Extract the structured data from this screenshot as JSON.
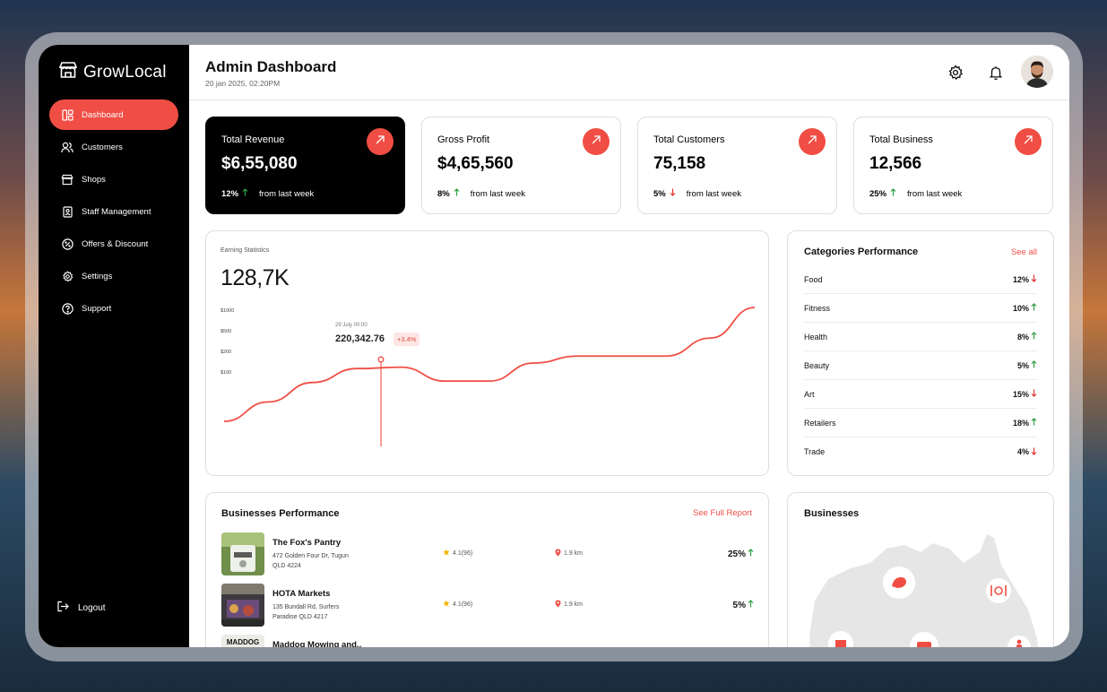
{
  "app": {
    "name": "GrowLocal"
  },
  "sidebar": {
    "items": [
      {
        "label": "Dashboard",
        "icon": "dashboard-icon",
        "active": true
      },
      {
        "label": "Customers",
        "icon": "users-icon"
      },
      {
        "label": "Shops",
        "icon": "shop-icon"
      },
      {
        "label": "Staff Management",
        "icon": "id-badge-icon"
      },
      {
        "label": "Offers & Discount",
        "icon": "discount-icon"
      },
      {
        "label": "Settings",
        "icon": "gear-icon"
      },
      {
        "label": "Support",
        "icon": "help-icon"
      }
    ],
    "logout": "Logout"
  },
  "header": {
    "title": "Admin Dashboard",
    "datetime": "20 jan 2025, 02:20PM"
  },
  "stats": [
    {
      "label": "Total Revenue",
      "value": "$6,55,080",
      "change": "12%",
      "direction": "up",
      "note": "from last week"
    },
    {
      "label": "Gross Profit",
      "value": "$4,65,560",
      "change": "8%",
      "direction": "up",
      "note": "from last week"
    },
    {
      "label": "Total Customers",
      "value": "75,158",
      "change": "5%",
      "direction": "down",
      "note": "from last week"
    },
    {
      "label": "Total Business",
      "value": "12,566",
      "change": "25%",
      "direction": "up",
      "note": "from last week"
    }
  ],
  "earning": {
    "label": "Earning Statistics",
    "value": "128,7K",
    "yticks": [
      "$1000",
      "$500",
      "$200",
      "$100"
    ],
    "tooltip": {
      "date": "29 July 00:00",
      "value": "220,342.76",
      "change": "+3.4%"
    }
  },
  "chart_data": {
    "type": "area",
    "title": "Earning Statistics",
    "yticks": [
      "$1000",
      "$500",
      "$200",
      "$100"
    ],
    "series": [
      {
        "values": [
          0.18,
          0.32,
          0.46,
          0.56,
          0.57,
          0.47,
          0.47,
          0.6,
          0.65,
          0.65,
          0.65,
          0.78,
          1.0
        ]
      }
    ],
    "grid": false
  },
  "categories": {
    "title": "Categories Performance",
    "see_all": "See all",
    "items": [
      {
        "name": "Food",
        "pct": "12%",
        "direction": "down"
      },
      {
        "name": "Fitness",
        "pct": "10%",
        "direction": "up"
      },
      {
        "name": "Health",
        "pct": "8%",
        "direction": "up"
      },
      {
        "name": "Beauty",
        "pct": "5%",
        "direction": "up"
      },
      {
        "name": "Art",
        "pct": "15%",
        "direction": "down"
      },
      {
        "name": "Retailers",
        "pct": "18%",
        "direction": "up"
      },
      {
        "name": "Trade",
        "pct": "4%",
        "direction": "down"
      }
    ]
  },
  "businesses_perf": {
    "title": "Businesses Performance",
    "report_link": "See Full Report",
    "rows": [
      {
        "name": "The Fox's Pantry",
        "addr1": "472 Golden Four Dr, Tugun",
        "addr2": "QLD 4224",
        "rating": "4.1(96)",
        "distance": "1.9 km",
        "pct": "25%",
        "direction": "up"
      },
      {
        "name": "HOTA Markets",
        "addr1": "135 Bundall Rd, Surfers",
        "addr2": "Paradise QLD 4217",
        "rating": "4.1(96)",
        "distance": "1.9 km",
        "pct": "5%",
        "direction": "up"
      },
      {
        "name": "Maddog Mowing and..",
        "addr1": "",
        "addr2": "",
        "rating": "",
        "distance": "",
        "pct": "",
        "direction": ""
      }
    ]
  },
  "businesses_map": {
    "title": "Businesses"
  },
  "colors": {
    "accent": "#f04e45",
    "up": "#2f9e44",
    "down": "#e03131"
  }
}
